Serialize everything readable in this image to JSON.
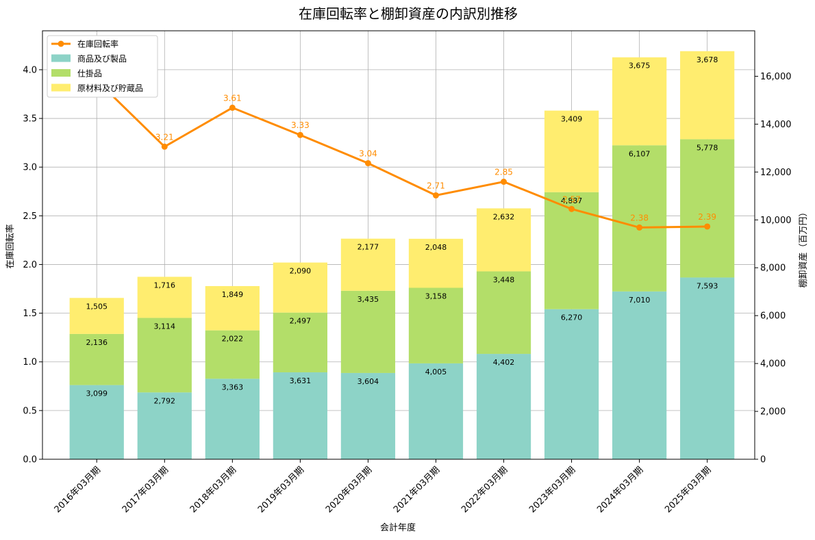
{
  "chart_data": {
    "type": "bar",
    "title": "在庫回転率と棚卸資産の内訳別推移",
    "xlabel": "会計年度",
    "ylabel_left": "在庫回転率",
    "ylabel_right": "棚卸資産（百万円）",
    "categories": [
      "2016年03月期",
      "2017年03月期",
      "2018年03月期",
      "2019年03月期",
      "2020年03月期",
      "2021年03月期",
      "2022年03月期",
      "2023年03月期",
      "2024年03月期",
      "2025年03月期"
    ],
    "ylim_left": [
      0,
      4.4
    ],
    "ylim_right": [
      0,
      17900
    ],
    "left_ticks": [
      "0.0",
      "0.5",
      "1.0",
      "1.5",
      "2.0",
      "2.5",
      "3.0",
      "3.5",
      "4.0"
    ],
    "right_ticks": [
      "0",
      "2,000",
      "4,000",
      "6,000",
      "8,000",
      "10,000",
      "12,000",
      "14,000",
      "16,000"
    ],
    "grid": true,
    "legend_position": "top-left",
    "series": [
      {
        "name": "商品及び製品",
        "kind": "bar",
        "axis": "right",
        "color": "#8dd3c7",
        "values": [
          3099,
          2792,
          3363,
          3631,
          3604,
          4005,
          4402,
          6270,
          7010,
          7593
        ],
        "labels": [
          "3,099",
          "2,792",
          "3,363",
          "3,631",
          "3,604",
          "4,005",
          "4,402",
          "6,270",
          "7,010",
          "7,593"
        ]
      },
      {
        "name": "仕掛品",
        "kind": "bar",
        "axis": "right",
        "color": "#b3de69",
        "values": [
          2136,
          3114,
          2022,
          2497,
          3435,
          3158,
          3448,
          4887,
          6107,
          5778
        ],
        "labels": [
          "2,136",
          "3,114",
          "2,022",
          "2,497",
          "3,435",
          "3,158",
          "3,448",
          "4,887",
          "6,107",
          "5,778"
        ]
      },
      {
        "name": "原材料及び貯蔵品",
        "kind": "bar",
        "axis": "right",
        "color": "#ffed6f",
        "values": [
          1505,
          1716,
          1849,
          2090,
          2177,
          2048,
          2632,
          3409,
          3675,
          3678
        ],
        "labels": [
          "1,505",
          "1,716",
          "1,849",
          "2,090",
          "2,177",
          "2,048",
          "2,632",
          "3,409",
          "3,675",
          "3,678"
        ]
      },
      {
        "name": "在庫回転率",
        "kind": "line",
        "axis": "left",
        "color": "#ff8c00",
        "values": [
          3.89,
          3.21,
          3.61,
          3.33,
          3.04,
          2.71,
          2.85,
          2.57,
          2.38,
          2.39
        ],
        "labels": [
          "",
          "3.21",
          "3.61",
          "3.33",
          "3.04",
          "2.71",
          "2.85",
          "2.57",
          "2.38",
          "2.39"
        ]
      }
    ]
  }
}
